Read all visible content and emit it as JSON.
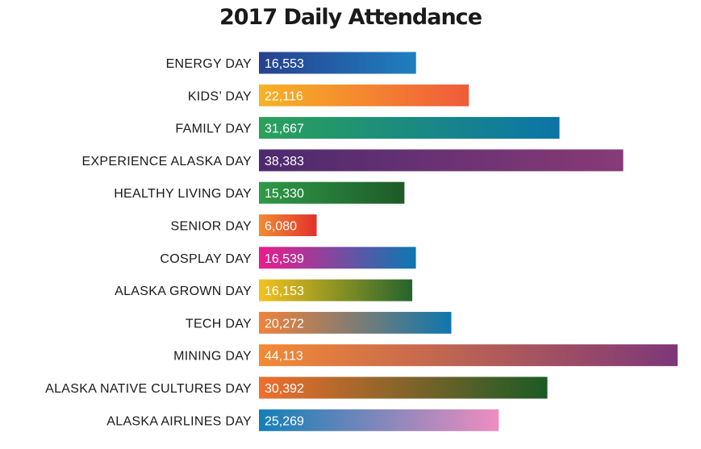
{
  "chart_data": {
    "type": "bar",
    "orientation": "horizontal",
    "title": "2017 Daily Attendance",
    "xlabel": "",
    "ylabel": "",
    "grid": false,
    "legend": "none",
    "categories": [
      "ENERGY DAY",
      "KIDS’ DAY",
      "FAMILY DAY",
      "EXPERIENCE ALASKA DAY",
      "HEALTHY LIVING DAY",
      "SENIOR DAY",
      "COSPLAY DAY",
      "ALASKA GROWN DAY",
      "TECH DAY",
      "MINING DAY",
      "ALASKA NATIVE CULTURES DAY",
      "ALASKA AIRLINES DAY"
    ],
    "values": [
      16553,
      22116,
      31667,
      38383,
      15330,
      6080,
      16539,
      16153,
      20272,
      44113,
      30392,
      25269
    ],
    "value_labels": [
      "16,553",
      "22,116",
      "31,667",
      "38,383",
      "15,330",
      "6,080",
      "16,539",
      "16,153",
      "20,272",
      "44,113",
      "30,392",
      "25,269"
    ],
    "bar_gradients": [
      [
        "#27418f",
        "#1f7fc0"
      ],
      [
        "#f7b325",
        "#f05a3b"
      ],
      [
        "#2aa15a",
        "#0c74a8"
      ],
      [
        "#4c2a6e",
        "#883a77"
      ],
      [
        "#2f9a48",
        "#1e5a28"
      ],
      [
        "#f28b33",
        "#e1322b"
      ],
      [
        "#ec1c8c",
        "#0b78b3"
      ],
      [
        "#f6c21c",
        "#24642d"
      ],
      [
        "#f0823a",
        "#0f77ad"
      ],
      [
        "#f58a33",
        "#7d3779"
      ],
      [
        "#ef6f2f",
        "#1b5a25"
      ],
      [
        "#1380b6",
        "#ef8dc0"
      ]
    ]
  }
}
